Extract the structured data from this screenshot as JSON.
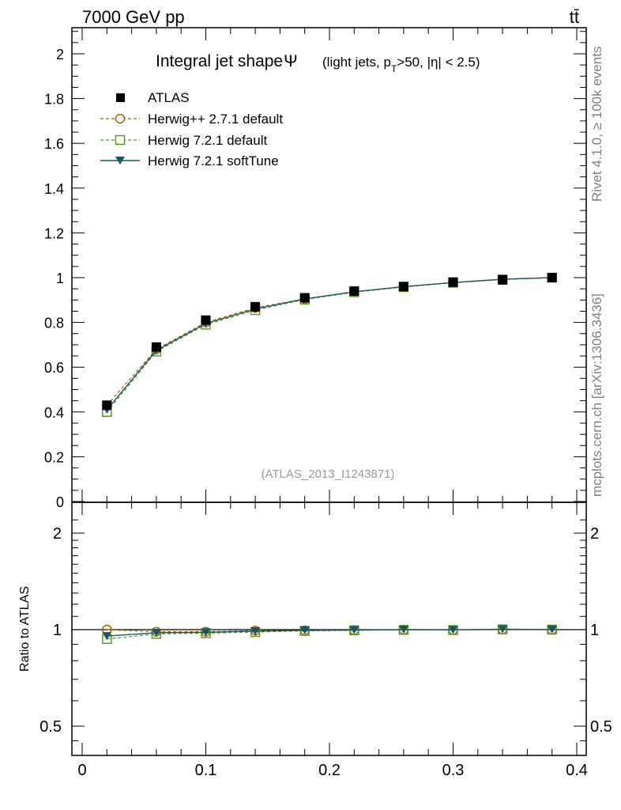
{
  "header": {
    "left": "7000 GeV pp",
    "right": "tt̄"
  },
  "side_labels": {
    "top": "Rivet 4.1.0, ≥ 100k events",
    "bottom": "mcplots.cern.ch [arXiv:1306.3436]"
  },
  "colors": {
    "atlas": "#000000",
    "herwigpp": "#b05a00",
    "herwig721": "#4c9a1a",
    "softtune": "#1d5566",
    "watermark": "#999999"
  },
  "chart_data": [
    {
      "panel": "main",
      "type": "line",
      "title_main": "Integral jet shape",
      "title_symbol": "Ψ",
      "title_sub": {
        "open": "(light jets, p",
        "sub": "T",
        "rest": ">50, |η| < 2.5)"
      },
      "watermark": "(ATLAS_2013_I1243871)",
      "xlim": [
        0,
        0.4
      ],
      "ylim": [
        0,
        2.12
      ],
      "yticks": [
        {
          "v": 0.2,
          "label": "0.2"
        },
        {
          "v": 0.4,
          "label": "0.4"
        },
        {
          "v": 0.6,
          "label": "0.6"
        },
        {
          "v": 0.8,
          "label": "0.8"
        },
        {
          "v": 1.0,
          "label": "1"
        },
        {
          "v": 1.2,
          "label": "1.2"
        },
        {
          "v": 1.4,
          "label": "1.4"
        },
        {
          "v": 1.6,
          "label": "1.6"
        },
        {
          "v": 1.8,
          "label": "1.8"
        },
        {
          "v": 2.0,
          "label": "2"
        }
      ],
      "y0_label": "0",
      "x": [
        0.02,
        0.06,
        0.1,
        0.14,
        0.18,
        0.22,
        0.26,
        0.3,
        0.34,
        0.38
      ],
      "series": [
        {
          "key": "atlas",
          "name": "ATLAS",
          "values": [
            0.43,
            0.69,
            0.81,
            0.87,
            0.91,
            0.94,
            0.96,
            0.98,
            0.99,
            1.0
          ]
        },
        {
          "key": "herwigpp",
          "name": "Herwig++ 2.7.1 default",
          "values": [
            0.43,
            0.68,
            0.8,
            0.865,
            0.905,
            0.937,
            0.96,
            0.978,
            0.992,
            1.0
          ]
        },
        {
          "key": "herwig721",
          "name": "Herwig 7.2.1 default",
          "values": [
            0.4,
            0.67,
            0.79,
            0.855,
            0.902,
            0.935,
            0.958,
            0.977,
            0.992,
            1.0
          ]
        },
        {
          "key": "softtune",
          "name": "Herwig 7.2.1 softTune",
          "values": [
            0.41,
            0.675,
            0.795,
            0.86,
            0.905,
            0.937,
            0.96,
            0.978,
            0.993,
            1.0
          ]
        }
      ]
    },
    {
      "panel": "ratio",
      "type": "line",
      "ylabel": "Ratio to ATLAS",
      "xlim": [
        0,
        0.4
      ],
      "ylim": [
        0.4,
        2.4
      ],
      "yscale": "log",
      "yticks": [
        {
          "v": 0.5,
          "label": "0.5"
        },
        {
          "v": 1,
          "label": "1"
        },
        {
          "v": 2,
          "label": "2"
        }
      ],
      "xticks": [
        {
          "v": 0,
          "label": "0"
        },
        {
          "v": 0.1,
          "label": "0.1"
        },
        {
          "v": 0.2,
          "label": "0.2"
        },
        {
          "v": 0.3,
          "label": "0.3"
        },
        {
          "v": 0.4,
          "label": "0.4"
        }
      ],
      "x": [
        0.02,
        0.06,
        0.1,
        0.14,
        0.18,
        0.22,
        0.26,
        0.3,
        0.34,
        0.38
      ],
      "series": [
        {
          "key": "herwigpp",
          "name": "Herwig++ 2.7.1 default",
          "values": [
            1.0,
            0.985,
            0.985,
            0.993,
            0.995,
            0.997,
            1.0,
            0.998,
            1.002,
            1.0
          ]
        },
        {
          "key": "herwig721",
          "name": "Herwig 7.2.1 default",
          "values": [
            0.935,
            0.97,
            0.975,
            0.983,
            0.991,
            0.995,
            0.998,
            0.997,
            1.002,
            1.0
          ]
        },
        {
          "key": "softtune",
          "name": "Herwig 7.2.1 softTune",
          "values": [
            0.955,
            0.978,
            0.981,
            0.989,
            0.995,
            0.997,
            1.0,
            0.998,
            1.003,
            1.001
          ]
        }
      ]
    }
  ]
}
